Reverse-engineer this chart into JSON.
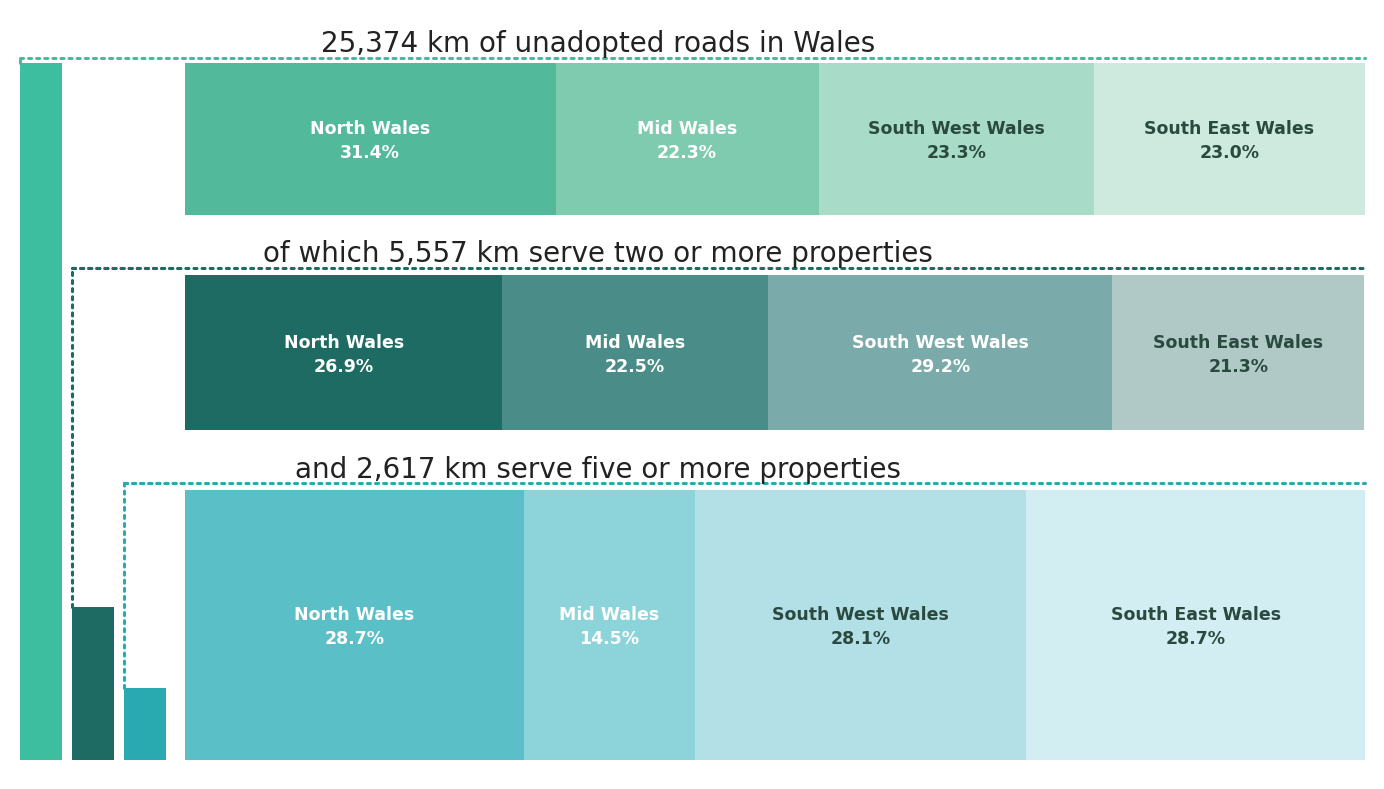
{
  "title1": "25,374 km of unadopted roads in Wales",
  "title2": "of which 5,557 km serve two or more properties",
  "title3": "and 2,617 km serve five or more properties",
  "bar1": {
    "regions": [
      "North Wales",
      "Mid Wales",
      "South West Wales",
      "South East Wales"
    ],
    "percentages": [
      31.4,
      22.3,
      23.3,
      23.0
    ],
    "colors": [
      "#52b99a",
      "#7ecbb0",
      "#a8dcc8",
      "#ceeade"
    ],
    "text_colors": [
      "white",
      "white",
      "#2a4a40",
      "#2a4a40"
    ]
  },
  "bar2": {
    "regions": [
      "North Wales",
      "Mid Wales",
      "South West Wales",
      "South East Wales"
    ],
    "percentages": [
      26.9,
      22.5,
      29.2,
      21.3
    ],
    "colors": [
      "#1e6b63",
      "#4a8c88",
      "#7aabaa",
      "#b0c8c6"
    ],
    "text_colors": [
      "white",
      "white",
      "white",
      "#2a4a40"
    ]
  },
  "bar3": {
    "regions": [
      "North Wales",
      "Mid Wales",
      "South West Wales",
      "South East Wales"
    ],
    "percentages": [
      28.7,
      14.5,
      28.1,
      28.7
    ],
    "colors": [
      "#5bbfc8",
      "#8dd4da",
      "#b2e0e6",
      "#d2eef2"
    ],
    "text_colors": [
      "white",
      "white",
      "#2a4a40",
      "#2a4a40"
    ]
  },
  "sidebar_color1": "#3dbf9f",
  "sidebar_color2": "#1e6b63",
  "sidebar_color3": "#29aab0",
  "dot_color1": "#3dbf9f",
  "dot_color2": "#1e6b63",
  "dot_color3": "#29aab0",
  "bg_color": "#ffffff",
  "text_color": "#222222",
  "total_km": 25374,
  "km2": 5557,
  "km3": 2617
}
